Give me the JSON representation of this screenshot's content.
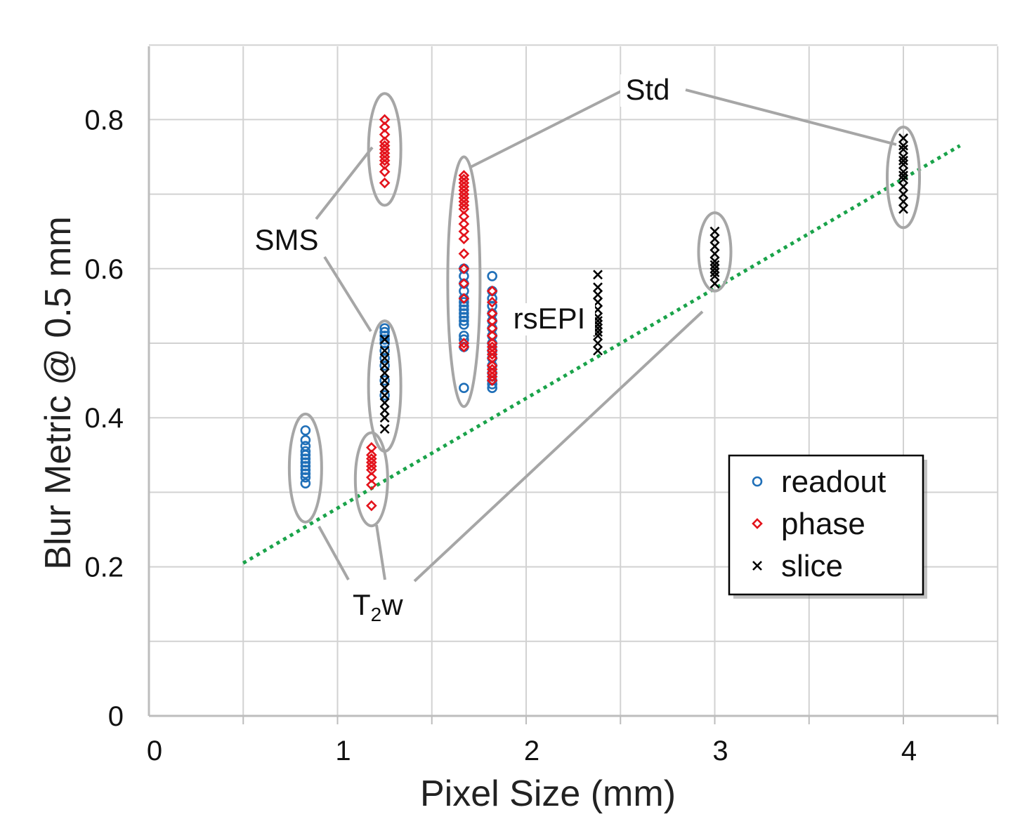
{
  "chart_data": {
    "type": "scatter",
    "title": "",
    "xlabel": "Pixel Size (mm)",
    "ylabel": "Blur Metric @ 0.5 mm",
    "xlim": [
      0,
      4.5
    ],
    "ylim": [
      0,
      0.9
    ],
    "xticks": [
      0,
      1,
      2,
      3,
      4
    ],
    "xtick_labels": [
      "0",
      "1",
      "2",
      "3",
      "4"
    ],
    "yticks": [
      0,
      0.2,
      0.4,
      0.6,
      0.8
    ],
    "ytick_labels": [
      "0",
      "0.2",
      "0.4",
      "0.6",
      "0.8"
    ],
    "grid": true,
    "legend_position": "lower-right",
    "series": [
      {
        "name": "readout",
        "marker": "circle",
        "color": "#1f6fb8",
        "x": [
          0.83,
          0.83,
          0.83,
          0.83,
          0.83,
          0.83,
          0.83,
          0.83,
          0.83,
          0.83,
          0.83,
          0.83,
          1.25,
          1.25,
          1.25,
          1.25,
          1.25,
          1.25,
          1.25,
          1.25,
          1.25,
          1.25,
          1.67,
          1.67,
          1.67,
          1.67,
          1.67,
          1.67,
          1.67,
          1.67,
          1.67,
          1.67,
          1.67,
          1.67,
          1.67,
          1.67,
          1.67,
          1.67,
          1.82,
          1.82,
          1.82,
          1.82,
          1.82,
          1.82,
          1.82,
          1.82,
          1.82,
          1.82,
          1.82,
          1.82,
          1.82,
          1.82,
          1.82,
          1.82
        ],
        "y": [
          0.383,
          0.37,
          0.362,
          0.355,
          0.35,
          0.345,
          0.34,
          0.335,
          0.33,
          0.325,
          0.32,
          0.312,
          0.52,
          0.515,
          0.51,
          0.505,
          0.5,
          0.49,
          0.48,
          0.47,
          0.45,
          0.43,
          0.6,
          0.59,
          0.58,
          0.57,
          0.56,
          0.555,
          0.55,
          0.545,
          0.54,
          0.535,
          0.53,
          0.525,
          0.505,
          0.495,
          0.44,
          0.51,
          0.59,
          0.57,
          0.56,
          0.55,
          0.54,
          0.53,
          0.52,
          0.51,
          0.5,
          0.49,
          0.48,
          0.47,
          0.46,
          0.45,
          0.445,
          0.44
        ]
      },
      {
        "name": "phase",
        "marker": "diamond",
        "color": "#e3131b",
        "x": [
          1.18,
          1.18,
          1.18,
          1.18,
          1.18,
          1.18,
          1.18,
          1.18,
          1.18,
          1.25,
          1.25,
          1.25,
          1.25,
          1.25,
          1.25,
          1.25,
          1.25,
          1.25,
          1.25,
          1.25,
          1.25,
          1.67,
          1.67,
          1.67,
          1.67,
          1.67,
          1.67,
          1.67,
          1.67,
          1.67,
          1.67,
          1.67,
          1.67,
          1.67,
          1.67,
          1.67,
          1.67,
          1.67,
          1.67,
          1.67,
          1.67,
          1.82,
          1.82,
          1.82,
          1.82,
          1.82,
          1.82,
          1.82,
          1.82,
          1.82,
          1.82,
          1.82,
          1.82,
          1.82,
          1.82,
          1.82,
          1.82
        ],
        "y": [
          0.36,
          0.35,
          0.345,
          0.34,
          0.335,
          0.33,
          0.32,
          0.31,
          0.282,
          0.8,
          0.79,
          0.78,
          0.77,
          0.765,
          0.76,
          0.755,
          0.75,
          0.745,
          0.74,
          0.73,
          0.715,
          0.725,
          0.72,
          0.715,
          0.71,
          0.705,
          0.7,
          0.695,
          0.69,
          0.685,
          0.68,
          0.67,
          0.66,
          0.65,
          0.64,
          0.62,
          0.6,
          0.58,
          0.56,
          0.5,
          0.495,
          0.57,
          0.555,
          0.54,
          0.53,
          0.52,
          0.51,
          0.5,
          0.495,
          0.49,
          0.485,
          0.48,
          0.47,
          0.465,
          0.46,
          0.455,
          0.45
        ]
      },
      {
        "name": "slice",
        "marker": "x",
        "color": "#000000",
        "x": [
          1.25,
          1.25,
          1.25,
          1.25,
          1.25,
          1.25,
          1.25,
          1.25,
          1.25,
          1.25,
          1.25,
          1.25,
          2.38,
          2.38,
          2.38,
          2.38,
          2.38,
          2.38,
          2.38,
          2.38,
          2.38,
          2.38,
          2.38,
          2.38,
          2.38,
          3.0,
          3.0,
          3.0,
          3.0,
          3.0,
          3.0,
          3.0,
          3.0,
          3.0,
          3.0,
          4.0,
          4.0,
          4.0,
          4.0,
          4.0,
          4.0,
          4.0,
          4.0,
          4.0,
          4.0,
          4.0,
          4.0,
          4.0
        ],
        "y": [
          0.505,
          0.49,
          0.48,
          0.47,
          0.46,
          0.45,
          0.44,
          0.43,
          0.42,
          0.41,
          0.4,
          0.385,
          0.592,
          0.575,
          0.565,
          0.555,
          0.545,
          0.535,
          0.53,
          0.525,
          0.52,
          0.515,
          0.51,
          0.5,
          0.49,
          0.65,
          0.64,
          0.63,
          0.62,
          0.61,
          0.605,
          0.6,
          0.595,
          0.59,
          0.58,
          0.775,
          0.765,
          0.76,
          0.75,
          0.745,
          0.74,
          0.73,
          0.725,
          0.72,
          0.71,
          0.7,
          0.69,
          0.68
        ]
      }
    ],
    "trend_line": {
      "style": "dotted",
      "color": "#1aa34a",
      "x": [
        0.5,
        4.3
      ],
      "y": [
        0.205,
        0.765
      ]
    },
    "groups": [
      {
        "x": 0.83,
        "y_range": [
          0.26,
          0.405
        ]
      },
      {
        "x": 1.18,
        "y_range": [
          0.255,
          0.38
        ]
      },
      {
        "x": 1.25,
        "y_range": [
          0.355,
          0.53
        ]
      },
      {
        "x": 1.25,
        "y_range": [
          0.685,
          0.835
        ]
      },
      {
        "x": 1.67,
        "y_range": [
          0.415,
          0.75
        ]
      },
      {
        "x": 3.0,
        "y_range": [
          0.57,
          0.675
        ]
      },
      {
        "x": 4.0,
        "y_range": [
          0.655,
          0.79
        ]
      }
    ],
    "annotations": [
      {
        "text": "Std",
        "x": 2.5,
        "y": 0.83,
        "targets": [
          [
            1.67,
            0.735
          ],
          [
            4.0,
            0.765
          ]
        ]
      },
      {
        "text": "SMS",
        "x": 0.55,
        "y": 0.63,
        "targets": [
          [
            1.2,
            0.76
          ],
          [
            1.17,
            0.515
          ]
        ]
      },
      {
        "text": "rsEPI",
        "x": 1.9,
        "y": 0.52,
        "targets": []
      },
      {
        "text": "T",
        "sub": "2",
        "suffix": "w",
        "x": 1.08,
        "y": 0.14,
        "targets": [
          [
            0.85,
            0.255
          ],
          [
            1.2,
            0.255
          ],
          [
            2.93,
            0.535
          ]
        ]
      }
    ]
  }
}
